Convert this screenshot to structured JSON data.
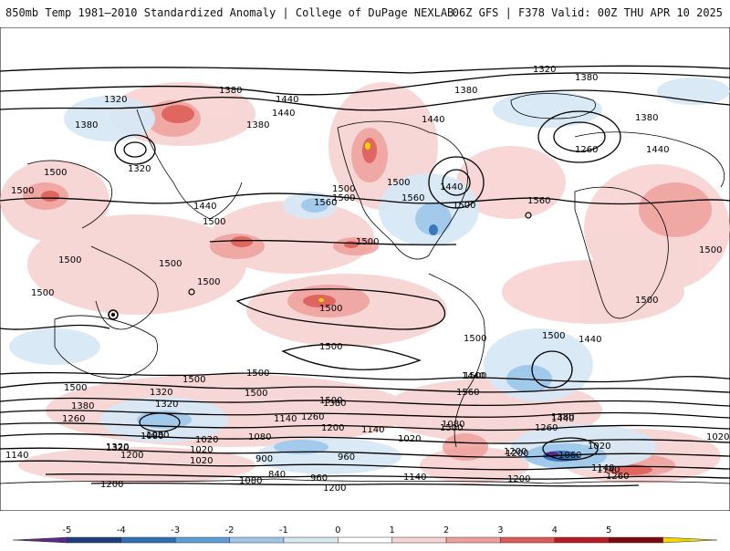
{
  "header": {
    "left_title": "850mb Temp 1981–2010 Standardized Anomaly | College of DuPage NEXLAB",
    "right_title": "06Z GFS | F378 Valid: 00Z THU APR 10 2025"
  },
  "contour_labels": [
    "1320",
    "1380",
    "1380",
    "1320",
    "1440",
    "1440",
    "1380",
    "1380",
    "1440",
    "1380",
    "1260",
    "1440",
    "1380",
    "1320",
    "1500",
    "1500",
    "1440",
    "1500",
    "1500",
    "1500",
    "1440",
    "1500",
    "1560",
    "1560",
    "1500",
    "1560",
    "1500",
    "1500",
    "1500",
    "1500",
    "1500",
    "1500",
    "1500",
    "1500",
    "1500",
    "1500",
    "1500",
    "1500",
    "1500",
    "1500",
    "1500",
    "1500",
    "1440",
    "1440",
    "1500",
    "1560",
    "1440",
    "1320",
    "1380",
    "1320",
    "1140",
    "1260",
    "1380",
    "1260",
    "1500",
    "1320",
    "1260",
    "1200",
    "1140",
    "1140",
    "1080",
    "1020",
    "1200",
    "1380",
    "1020",
    "1320",
    "1200",
    "1080",
    "1020",
    "900",
    "960",
    "1020",
    "1080",
    "1200",
    "1140",
    "1080",
    "1020",
    "1060",
    "1200",
    "840",
    "1080",
    "960",
    "1200",
    "1140",
    "1140",
    "1260",
    "1200",
    "1020"
  ],
  "colorbar": {
    "ticks": [
      "-5",
      "-4",
      "-3",
      "-2",
      "-1",
      "0",
      "1",
      "2",
      "3",
      "4",
      "5"
    ],
    "colors": [
      "#5b2a86",
      "#1f3f7a",
      "#2e6fb5",
      "#5c9fd6",
      "#9cc6ea",
      "#d7e8f5",
      "#ffffff",
      "#f7d3d1",
      "#efa09c",
      "#dd5a55",
      "#b81c22",
      "#7a0a10",
      "#f2d600"
    ]
  },
  "map": {
    "anomaly_positive_color": "#e8625c",
    "anomaly_negative_color": "#5b8fd0",
    "contour_color": "#000000",
    "coastline_color": "#000000"
  }
}
